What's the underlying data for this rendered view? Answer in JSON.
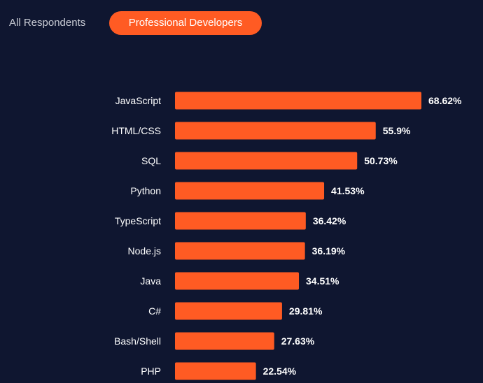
{
  "tabs": {
    "all_respondents": "All Respondents",
    "professional_developers": "Professional Developers",
    "active": "professional_developers"
  },
  "colors": {
    "background": "#0f1630",
    "bar": "#ff5b23",
    "text": "#ffffff",
    "inactive_tab_text": "#c8cbd4"
  },
  "chart_data": {
    "type": "bar",
    "orientation": "horizontal",
    "categories": [
      "JavaScript",
      "HTML/CSS",
      "SQL",
      "Python",
      "TypeScript",
      "Node.js",
      "Java",
      "C#",
      "Bash/Shell",
      "PHP"
    ],
    "values": [
      68.62,
      55.9,
      50.73,
      41.53,
      36.42,
      36.19,
      34.51,
      29.81,
      27.63,
      22.54
    ],
    "value_labels": [
      "68.62%",
      "55.9%",
      "50.73%",
      "41.53%",
      "36.42%",
      "36.19%",
      "34.51%",
      "29.81%",
      "27.63%",
      "22.54%"
    ],
    "xlim": [
      0,
      68.62
    ],
    "grid": false,
    "legend": "none"
  }
}
